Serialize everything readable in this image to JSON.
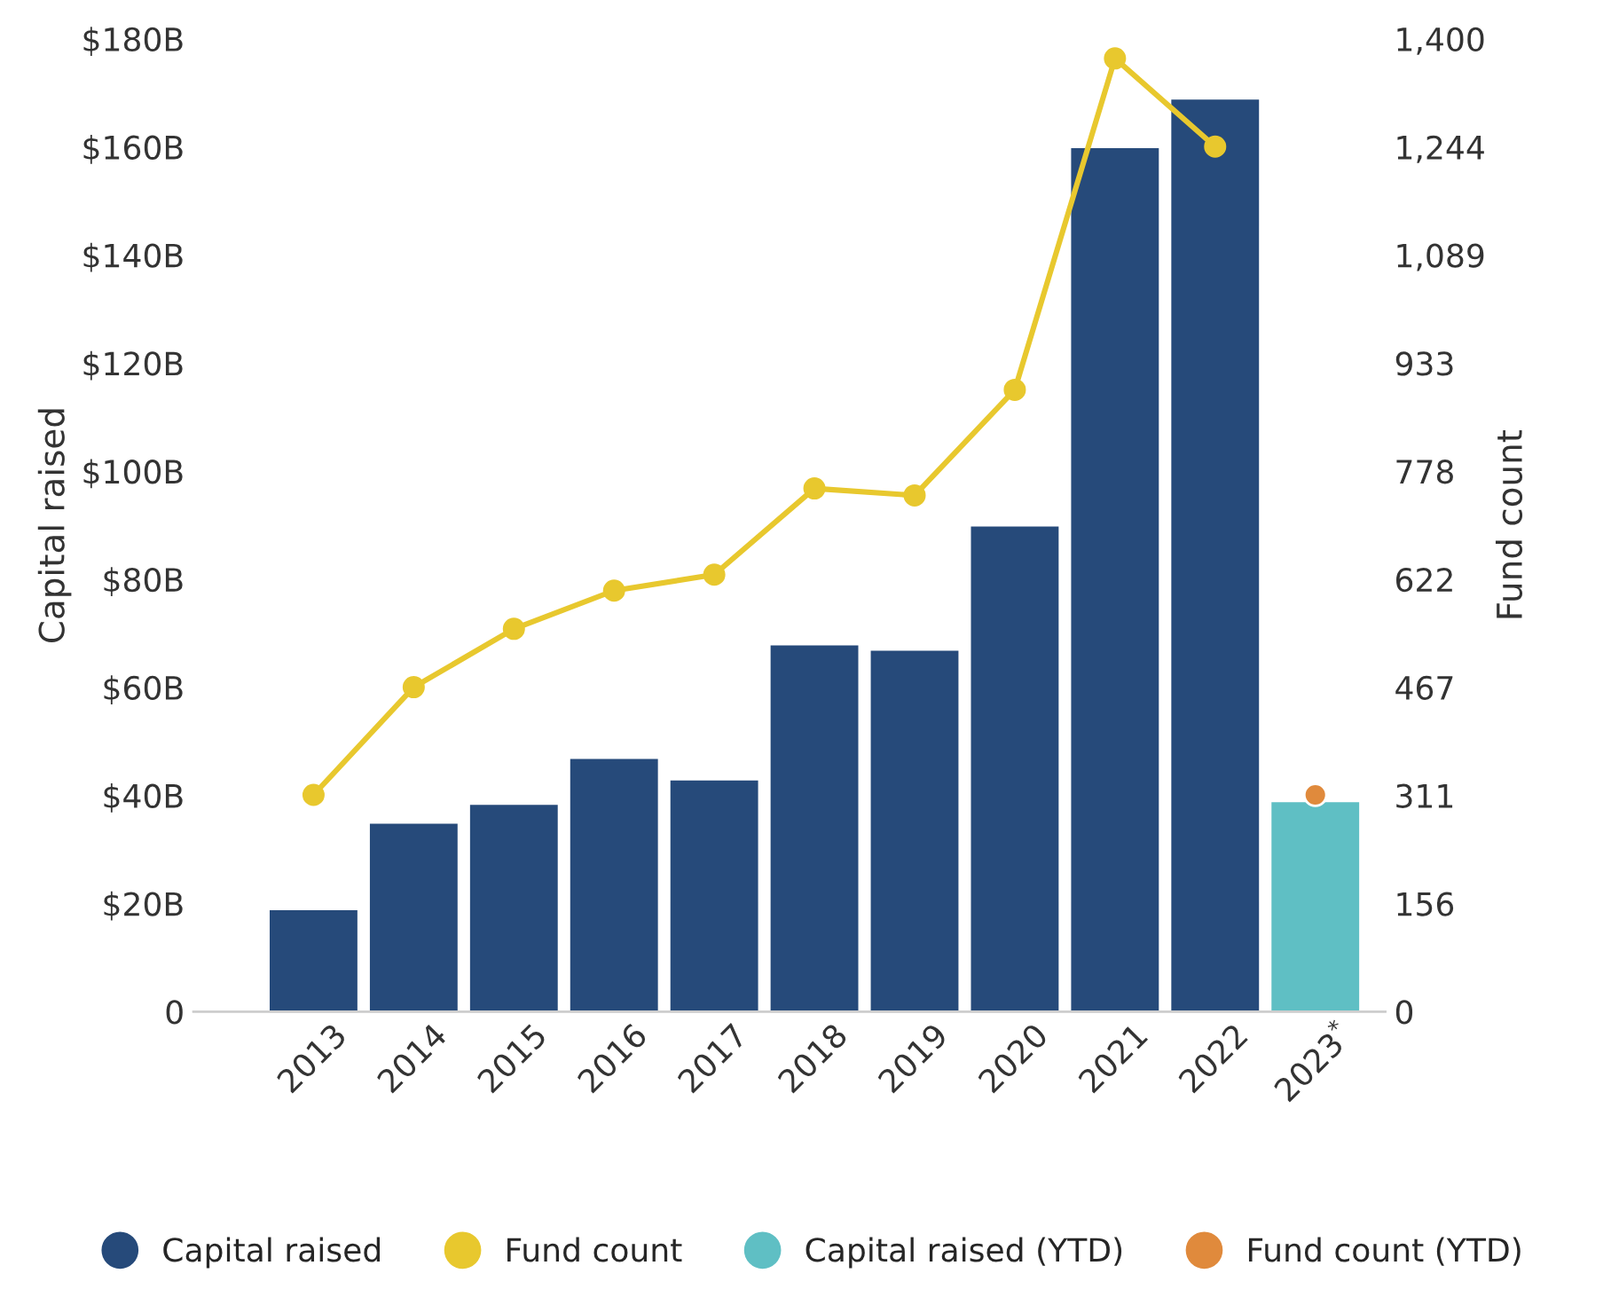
{
  "chart_data": {
    "type": "bar",
    "ylabel": "Capital raised",
    "y2label": "Fund count",
    "categories": [
      "2013",
      "2014",
      "2015",
      "2016",
      "2017",
      "2018",
      "2019",
      "2020",
      "2021",
      "2022",
      "2023$^{*}$"
    ],
    "series": [
      {
        "name": "Capital raised",
        "color": "#264a7a",
        "values": [
          19,
          35,
          38.5,
          47,
          43,
          68,
          67,
          90,
          160,
          169,
          null
        ]
      },
      {
        "name": "Fund count",
        "type": "line",
        "axis": "y2",
        "color": "#e8c82e",
        "marker": "circle",
        "values": [
          312,
          467,
          551,
          606,
          629,
          753,
          743,
          895,
          1372,
          1245,
          null
        ]
      },
      {
        "name": "Capital raised (YTD)",
        "color": "#5fbfc4",
        "values": [
          null,
          null,
          null,
          null,
          null,
          null,
          null,
          null,
          null,
          null,
          39
        ]
      },
      {
        "name": "Fund count (YTD)",
        "type": "scatter",
        "axis": "y2",
        "color": "#e08a3c",
        "marker": "circle",
        "values": [
          null,
          null,
          null,
          null,
          null,
          null,
          null,
          null,
          null,
          null,
          312
        ]
      }
    ],
    "ylim": [
      0,
      180
    ],
    "yticks": [
      {
        "value": 0,
        "label": "0"
      },
      {
        "value": 20,
        "label": "$20B"
      },
      {
        "value": 40,
        "label": "$40B"
      },
      {
        "value": 60,
        "label": "$60B"
      },
      {
        "value": 80,
        "label": "$80B"
      },
      {
        "value": 100,
        "label": "$100B"
      },
      {
        "value": 120,
        "label": "$120B"
      },
      {
        "value": 140,
        "label": "$140B"
      },
      {
        "value": 160,
        "label": "$160B"
      },
      {
        "value": 180,
        "label": "$180B"
      }
    ],
    "y2lim": [
      0,
      1400
    ],
    "y2ticks": [
      0,
      {
        "value": 155.6,
        "label": "156"
      },
      {
        "value": 311.1,
        "label": "311"
      },
      {
        "value": 466.7,
        "label": "467"
      },
      {
        "value": 622.2,
        "label": "622"
      },
      {
        "value": 777.8,
        "label": "778"
      },
      {
        "value": 933.3,
        "label": "933"
      },
      {
        "value": 1088.9,
        "label": "1,089"
      },
      {
        "value": 1244.4,
        "label": "1,244"
      },
      {
        "value": 1400,
        "label": "1,400"
      }
    ],
    "legend": "bottom",
    "grid": false
  }
}
